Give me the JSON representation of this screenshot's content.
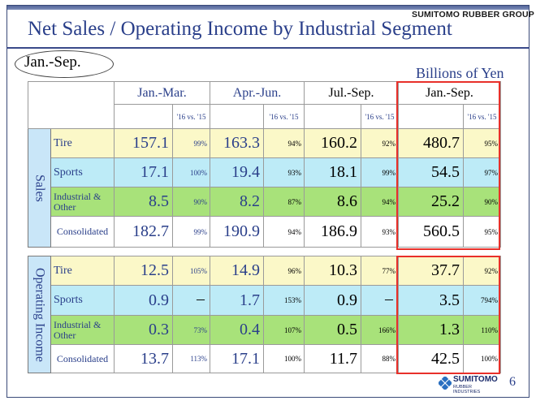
{
  "brand": "SUMITOMO RUBBER GROUP",
  "title": "Net Sales / Operating Income by Industrial Segment",
  "period": "Jan.-Sep.",
  "unit": "Billions of Yen",
  "columns": {
    "q1": "Jan.-Mar.",
    "q2": "Apr.-Jun.",
    "q3": "Jul.-Sep.",
    "ytd": "Jan.-Sep.",
    "compare": "'16 vs. '15"
  },
  "sales": {
    "label": "Sales",
    "rows": [
      {
        "segment": "Tire",
        "q1": "157.1",
        "q1p": "99%",
        "q2": "163.3",
        "q2p": "94%",
        "q3": "160.2",
        "q3p": "92%",
        "ytd": "480.7",
        "ytdp": "95%"
      },
      {
        "segment": "Sports",
        "q1": "17.1",
        "q1p": "100%",
        "q2": "19.4",
        "q2p": "93%",
        "q3": "18.1",
        "q3p": "99%",
        "ytd": "54.5",
        "ytdp": "97%"
      },
      {
        "segment": "Industrial & Other",
        "q1": "8.5",
        "q1p": "90%",
        "q2": "8.2",
        "q2p": "87%",
        "q3": "8.6",
        "q3p": "94%",
        "ytd": "25.2",
        "ytdp": "90%"
      },
      {
        "segment": "Consolidated",
        "q1": "182.7",
        "q1p": "99%",
        "q2": "190.9",
        "q2p": "94%",
        "q3": "186.9",
        "q3p": "93%",
        "ytd": "560.5",
        "ytdp": "95%"
      }
    ]
  },
  "operating": {
    "label": "Operating Income",
    "rows": [
      {
        "segment": "Tire",
        "q1": "12.5",
        "q1p": "105%",
        "q2": "14.9",
        "q2p": "96%",
        "q3": "10.3",
        "q3p": "77%",
        "ytd": "37.7",
        "ytdp": "92%"
      },
      {
        "segment": "Sports",
        "q1": "0.9",
        "q1p": "－",
        "q2": "1.7",
        "q2p": "153%",
        "q3": "0.9",
        "q3p": "－",
        "ytd": "3.5",
        "ytdp": "794%"
      },
      {
        "segment": "Industrial & Other",
        "q1": "0.3",
        "q1p": "73%",
        "q2": "0.4",
        "q2p": "107%",
        "q3": "0.5",
        "q3p": "166%",
        "ytd": "1.3",
        "ytdp": "110%"
      },
      {
        "segment": "Consolidated",
        "q1": "13.7",
        "q1p": "113%",
        "q2": "17.1",
        "q2p": "100%",
        "q3": "11.7",
        "q3p": "88%",
        "ytd": "42.5",
        "ytdp": "100%"
      }
    ]
  },
  "logo": {
    "name": "SUMITOMO",
    "sub": "RUBBER INDUSTRIES",
    "icon": "sumitomo-logo-icon"
  },
  "page_number": "6",
  "colors": {
    "title": "#2a3f8a",
    "highlight_box": "#e8302a",
    "tire_row": "#fbf8c8",
    "sports_row": "#bdebf7",
    "industrial_row": "#a8e27a"
  }
}
